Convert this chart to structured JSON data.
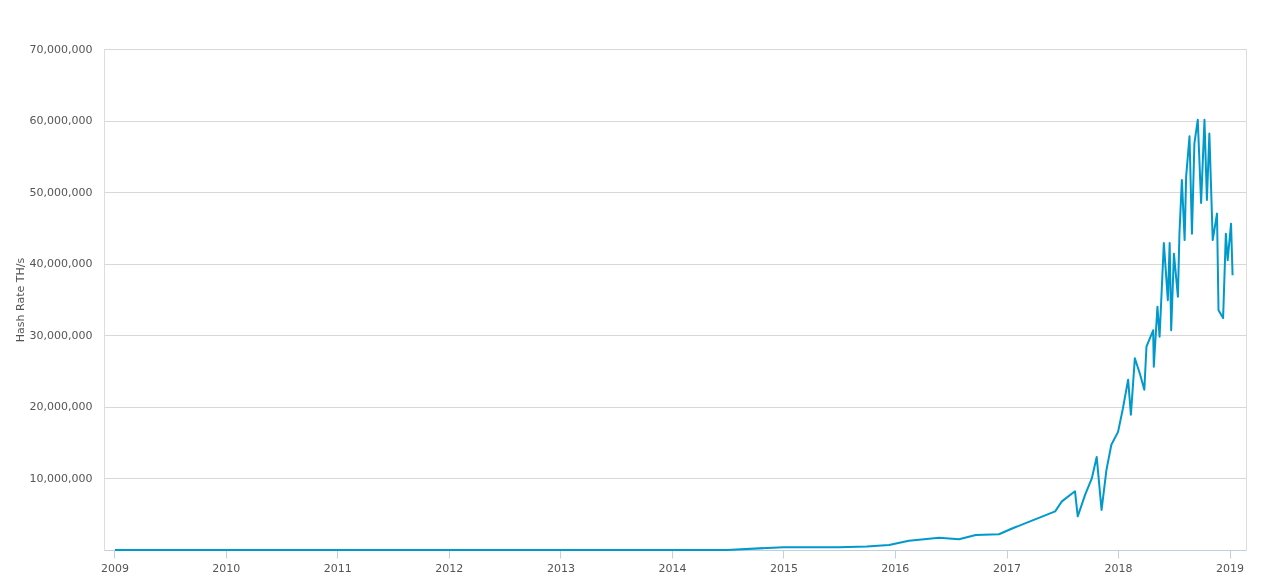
{
  "chart_data": {
    "type": "line",
    "ylabel": "Hash Rate TH/s",
    "xlim": [
      "2008-11-28",
      "2019-02-24"
    ],
    "ylim": [
      0,
      70000000
    ],
    "xticks": [
      "2009",
      "2010",
      "2011",
      "2012",
      "2013",
      "2014",
      "2015",
      "2016",
      "2017",
      "2018",
      "2019"
    ],
    "yticks": [
      {
        "value": 10000000,
        "label": "10,000,000"
      },
      {
        "value": 20000000,
        "label": "20,000,000"
      },
      {
        "value": 30000000,
        "label": "30,000,000"
      },
      {
        "value": 40000000,
        "label": "40,000,000"
      },
      {
        "value": 50000000,
        "label": "50,000,000"
      },
      {
        "value": 60000000,
        "label": "60,000,000"
      },
      {
        "value": 70000000,
        "label": "70,000,000"
      }
    ],
    "grid": "y",
    "marker": "none",
    "line_style": "solid",
    "series": [
      {
        "color": "#0099cc",
        "x": [
          "2009-01-03",
          "2010-01-01",
          "2011-01-01",
          "2012-01-01",
          "2013-01-01",
          "2014-01-01",
          "2014-07-01",
          "2015-01-01",
          "2015-07-01",
          "2015-10-01",
          "2015-12-13",
          "2016-02-16",
          "2016-05-25",
          "2016-07-29",
          "2016-09-22",
          "2016-12-07",
          "2017-01-19",
          "2017-03-25",
          "2017-06-09",
          "2017-07-01",
          "2017-08-13",
          "2017-08-22",
          "2017-09-15",
          "2017-10-07",
          "2017-10-23",
          "2017-11-08",
          "2017-11-24",
          "2017-12-10",
          "2018-01-01",
          "2018-01-17",
          "2018-02-03",
          "2018-02-12",
          "2018-02-25",
          "2018-03-13",
          "2018-03-28",
          "2018-04-04",
          "2018-04-26",
          "2018-04-28",
          "2018-05-10",
          "2018-05-17",
          "2018-05-31",
          "2018-06-13",
          "2018-06-19",
          "2018-06-24",
          "2018-07-03",
          "2018-07-16",
          "2018-07-21",
          "2018-07-29",
          "2018-08-07",
          "2018-08-12",
          "2018-08-23",
          "2018-08-31",
          "2018-09-08",
          "2018-09-19",
          "2018-09-30",
          "2018-10-11",
          "2018-10-19",
          "2018-10-27",
          "2018-11-07",
          "2018-11-21",
          "2018-11-26",
          "2018-12-11",
          "2018-12-20",
          "2018-12-26",
          "2019-01-06",
          "2019-01-11"
        ],
        "values": [
          0,
          0,
          0,
          0,
          0,
          0,
          0,
          400000,
          400000,
          500000,
          700000,
          1300000,
          1700000,
          1500000,
          2100000,
          2200000,
          3000000,
          4100000,
          5400000,
          6800000,
          8200000,
          4700000,
          7700000,
          10000000,
          13000000,
          5600000,
          11200000,
          14700000,
          16500000,
          19800000,
          23800000,
          18900000,
          26800000,
          24700000,
          22400000,
          28400000,
          30700000,
          25600000,
          34000000,
          29800000,
          42900000,
          34900000,
          42900000,
          30700000,
          41400000,
          35400000,
          44200000,
          51700000,
          43300000,
          52200000,
          57800000,
          44200000,
          56800000,
          60100000,
          48500000,
          60100000,
          48900000,
          58200000,
          43300000,
          47000000,
          33500000,
          32400000,
          44200000,
          40500000,
          45600000,
          38400000
        ]
      }
    ]
  }
}
